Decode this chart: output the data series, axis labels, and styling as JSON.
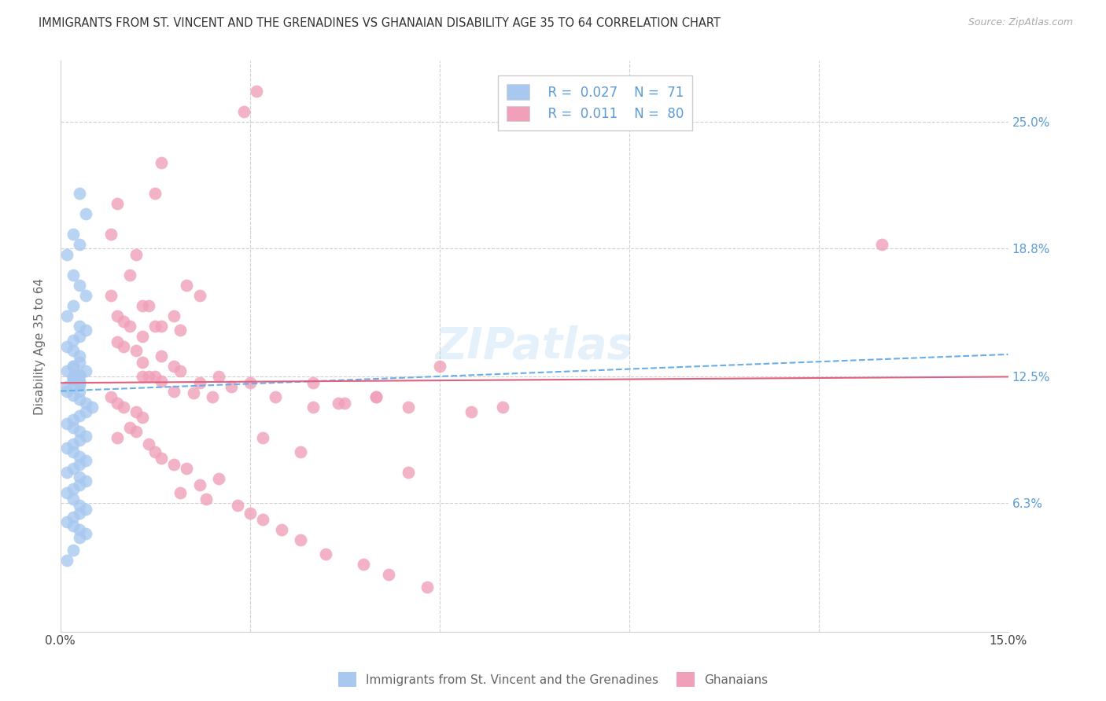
{
  "title": "IMMIGRANTS FROM ST. VINCENT AND THE GRENADINES VS GHANAIAN DISABILITY AGE 35 TO 64 CORRELATION CHART",
  "source": "Source: ZipAtlas.com",
  "ylabel_label": "Disability Age 35 to 64",
  "ytick_labels": [
    "25.0%",
    "18.8%",
    "12.5%",
    "6.3%"
  ],
  "ytick_values": [
    0.25,
    0.188,
    0.125,
    0.063
  ],
  "xlim": [
    0.0,
    0.15
  ],
  "ylim": [
    0.0,
    0.28
  ],
  "color_blue": "#a8c8f0",
  "color_pink": "#f0a0b8",
  "color_line_blue": "#6aaee8",
  "color_line_pink": "#e06080",
  "watermark": "ZIPatlas",
  "blue_scatter_x": [
    0.003,
    0.004,
    0.002,
    0.003,
    0.001,
    0.002,
    0.003,
    0.004,
    0.002,
    0.001,
    0.003,
    0.004,
    0.003,
    0.002,
    0.001,
    0.002,
    0.003,
    0.003,
    0.002,
    0.001,
    0.003,
    0.002,
    0.003,
    0.002,
    0.001,
    0.002,
    0.003,
    0.003,
    0.002,
    0.004,
    0.003,
    0.002,
    0.001,
    0.003,
    0.002,
    0.003,
    0.004,
    0.005,
    0.004,
    0.003,
    0.002,
    0.001,
    0.002,
    0.003,
    0.004,
    0.003,
    0.002,
    0.001,
    0.002,
    0.003,
    0.004,
    0.003,
    0.002,
    0.001,
    0.003,
    0.004,
    0.003,
    0.002,
    0.001,
    0.002,
    0.003,
    0.004,
    0.003,
    0.002,
    0.001,
    0.002,
    0.003,
    0.004,
    0.003,
    0.002,
    0.001
  ],
  "blue_scatter_y": [
    0.215,
    0.205,
    0.195,
    0.19,
    0.185,
    0.175,
    0.17,
    0.165,
    0.16,
    0.155,
    0.15,
    0.148,
    0.145,
    0.143,
    0.14,
    0.138,
    0.135,
    0.132,
    0.13,
    0.128,
    0.126,
    0.124,
    0.122,
    0.12,
    0.118,
    0.125,
    0.123,
    0.121,
    0.13,
    0.128,
    0.126,
    0.124,
    0.12,
    0.118,
    0.116,
    0.114,
    0.112,
    0.11,
    0.108,
    0.106,
    0.104,
    0.102,
    0.1,
    0.098,
    0.096,
    0.094,
    0.092,
    0.09,
    0.088,
    0.086,
    0.084,
    0.082,
    0.08,
    0.078,
    0.076,
    0.074,
    0.072,
    0.07,
    0.068,
    0.065,
    0.062,
    0.06,
    0.058,
    0.056,
    0.054,
    0.052,
    0.05,
    0.048,
    0.046,
    0.04,
    0.035
  ],
  "pink_scatter_x": [
    0.031,
    0.029,
    0.016,
    0.015,
    0.009,
    0.008,
    0.012,
    0.011,
    0.02,
    0.022,
    0.008,
    0.013,
    0.014,
    0.009,
    0.01,
    0.011,
    0.016,
    0.019,
    0.013,
    0.018,
    0.015,
    0.009,
    0.01,
    0.012,
    0.016,
    0.013,
    0.018,
    0.019,
    0.013,
    0.014,
    0.015,
    0.016,
    0.025,
    0.022,
    0.027,
    0.018,
    0.021,
    0.024,
    0.03,
    0.034,
    0.04,
    0.044,
    0.05,
    0.055,
    0.06,
    0.07,
    0.065,
    0.05,
    0.045,
    0.04,
    0.13,
    0.008,
    0.009,
    0.01,
    0.012,
    0.013,
    0.011,
    0.012,
    0.009,
    0.014,
    0.015,
    0.016,
    0.018,
    0.02,
    0.025,
    0.022,
    0.019,
    0.023,
    0.028,
    0.03,
    0.032,
    0.035,
    0.038,
    0.042,
    0.048,
    0.052,
    0.058,
    0.032,
    0.038,
    0.055
  ],
  "pink_scatter_y": [
    0.265,
    0.255,
    0.23,
    0.215,
    0.21,
    0.195,
    0.185,
    0.175,
    0.17,
    0.165,
    0.165,
    0.16,
    0.16,
    0.155,
    0.152,
    0.15,
    0.15,
    0.148,
    0.145,
    0.155,
    0.15,
    0.142,
    0.14,
    0.138,
    0.135,
    0.132,
    0.13,
    0.128,
    0.125,
    0.125,
    0.125,
    0.123,
    0.125,
    0.122,
    0.12,
    0.118,
    0.117,
    0.115,
    0.122,
    0.115,
    0.122,
    0.112,
    0.115,
    0.11,
    0.13,
    0.11,
    0.108,
    0.115,
    0.112,
    0.11,
    0.19,
    0.115,
    0.112,
    0.11,
    0.108,
    0.105,
    0.1,
    0.098,
    0.095,
    0.092,
    0.088,
    0.085,
    0.082,
    0.08,
    0.075,
    0.072,
    0.068,
    0.065,
    0.062,
    0.058,
    0.055,
    0.05,
    0.045,
    0.038,
    0.033,
    0.028,
    0.022,
    0.095,
    0.088,
    0.078
  ]
}
